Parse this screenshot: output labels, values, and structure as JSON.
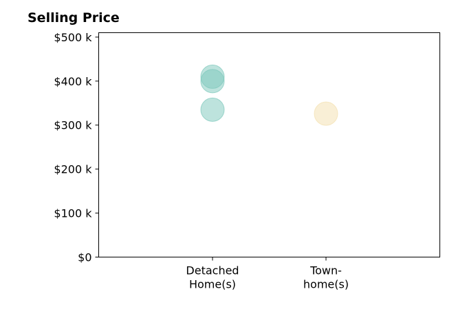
{
  "chart_data": {
    "type": "scatter",
    "title": "Selling Price",
    "xlabel": "",
    "ylabel": "",
    "ylim": [
      0,
      510000
    ],
    "categories": [
      {
        "lines": [
          "Detached",
          "Home(s)"
        ]
      },
      {
        "lines": [
          "Town-",
          "home(s)"
        ]
      }
    ],
    "y_ticks": [
      {
        "value": 0,
        "label": "$0"
      },
      {
        "value": 100000,
        "label": "$100 k"
      },
      {
        "value": 200000,
        "label": "$200 k"
      },
      {
        "value": 300000,
        "label": "$300 k"
      },
      {
        "value": 400000,
        "label": "$400 k"
      },
      {
        "value": 500000,
        "label": "$500 k"
      }
    ],
    "points": [
      {
        "category": 0,
        "value": 410000,
        "color": "#7cc8bb"
      },
      {
        "category": 0,
        "value": 400000,
        "color": "#7cc8bb"
      },
      {
        "category": 0,
        "value": 335000,
        "color": "#7cc8bb"
      },
      {
        "category": 1,
        "value": 326000,
        "color": "#f3dfae"
      }
    ],
    "grid": false,
    "legend": "none"
  }
}
